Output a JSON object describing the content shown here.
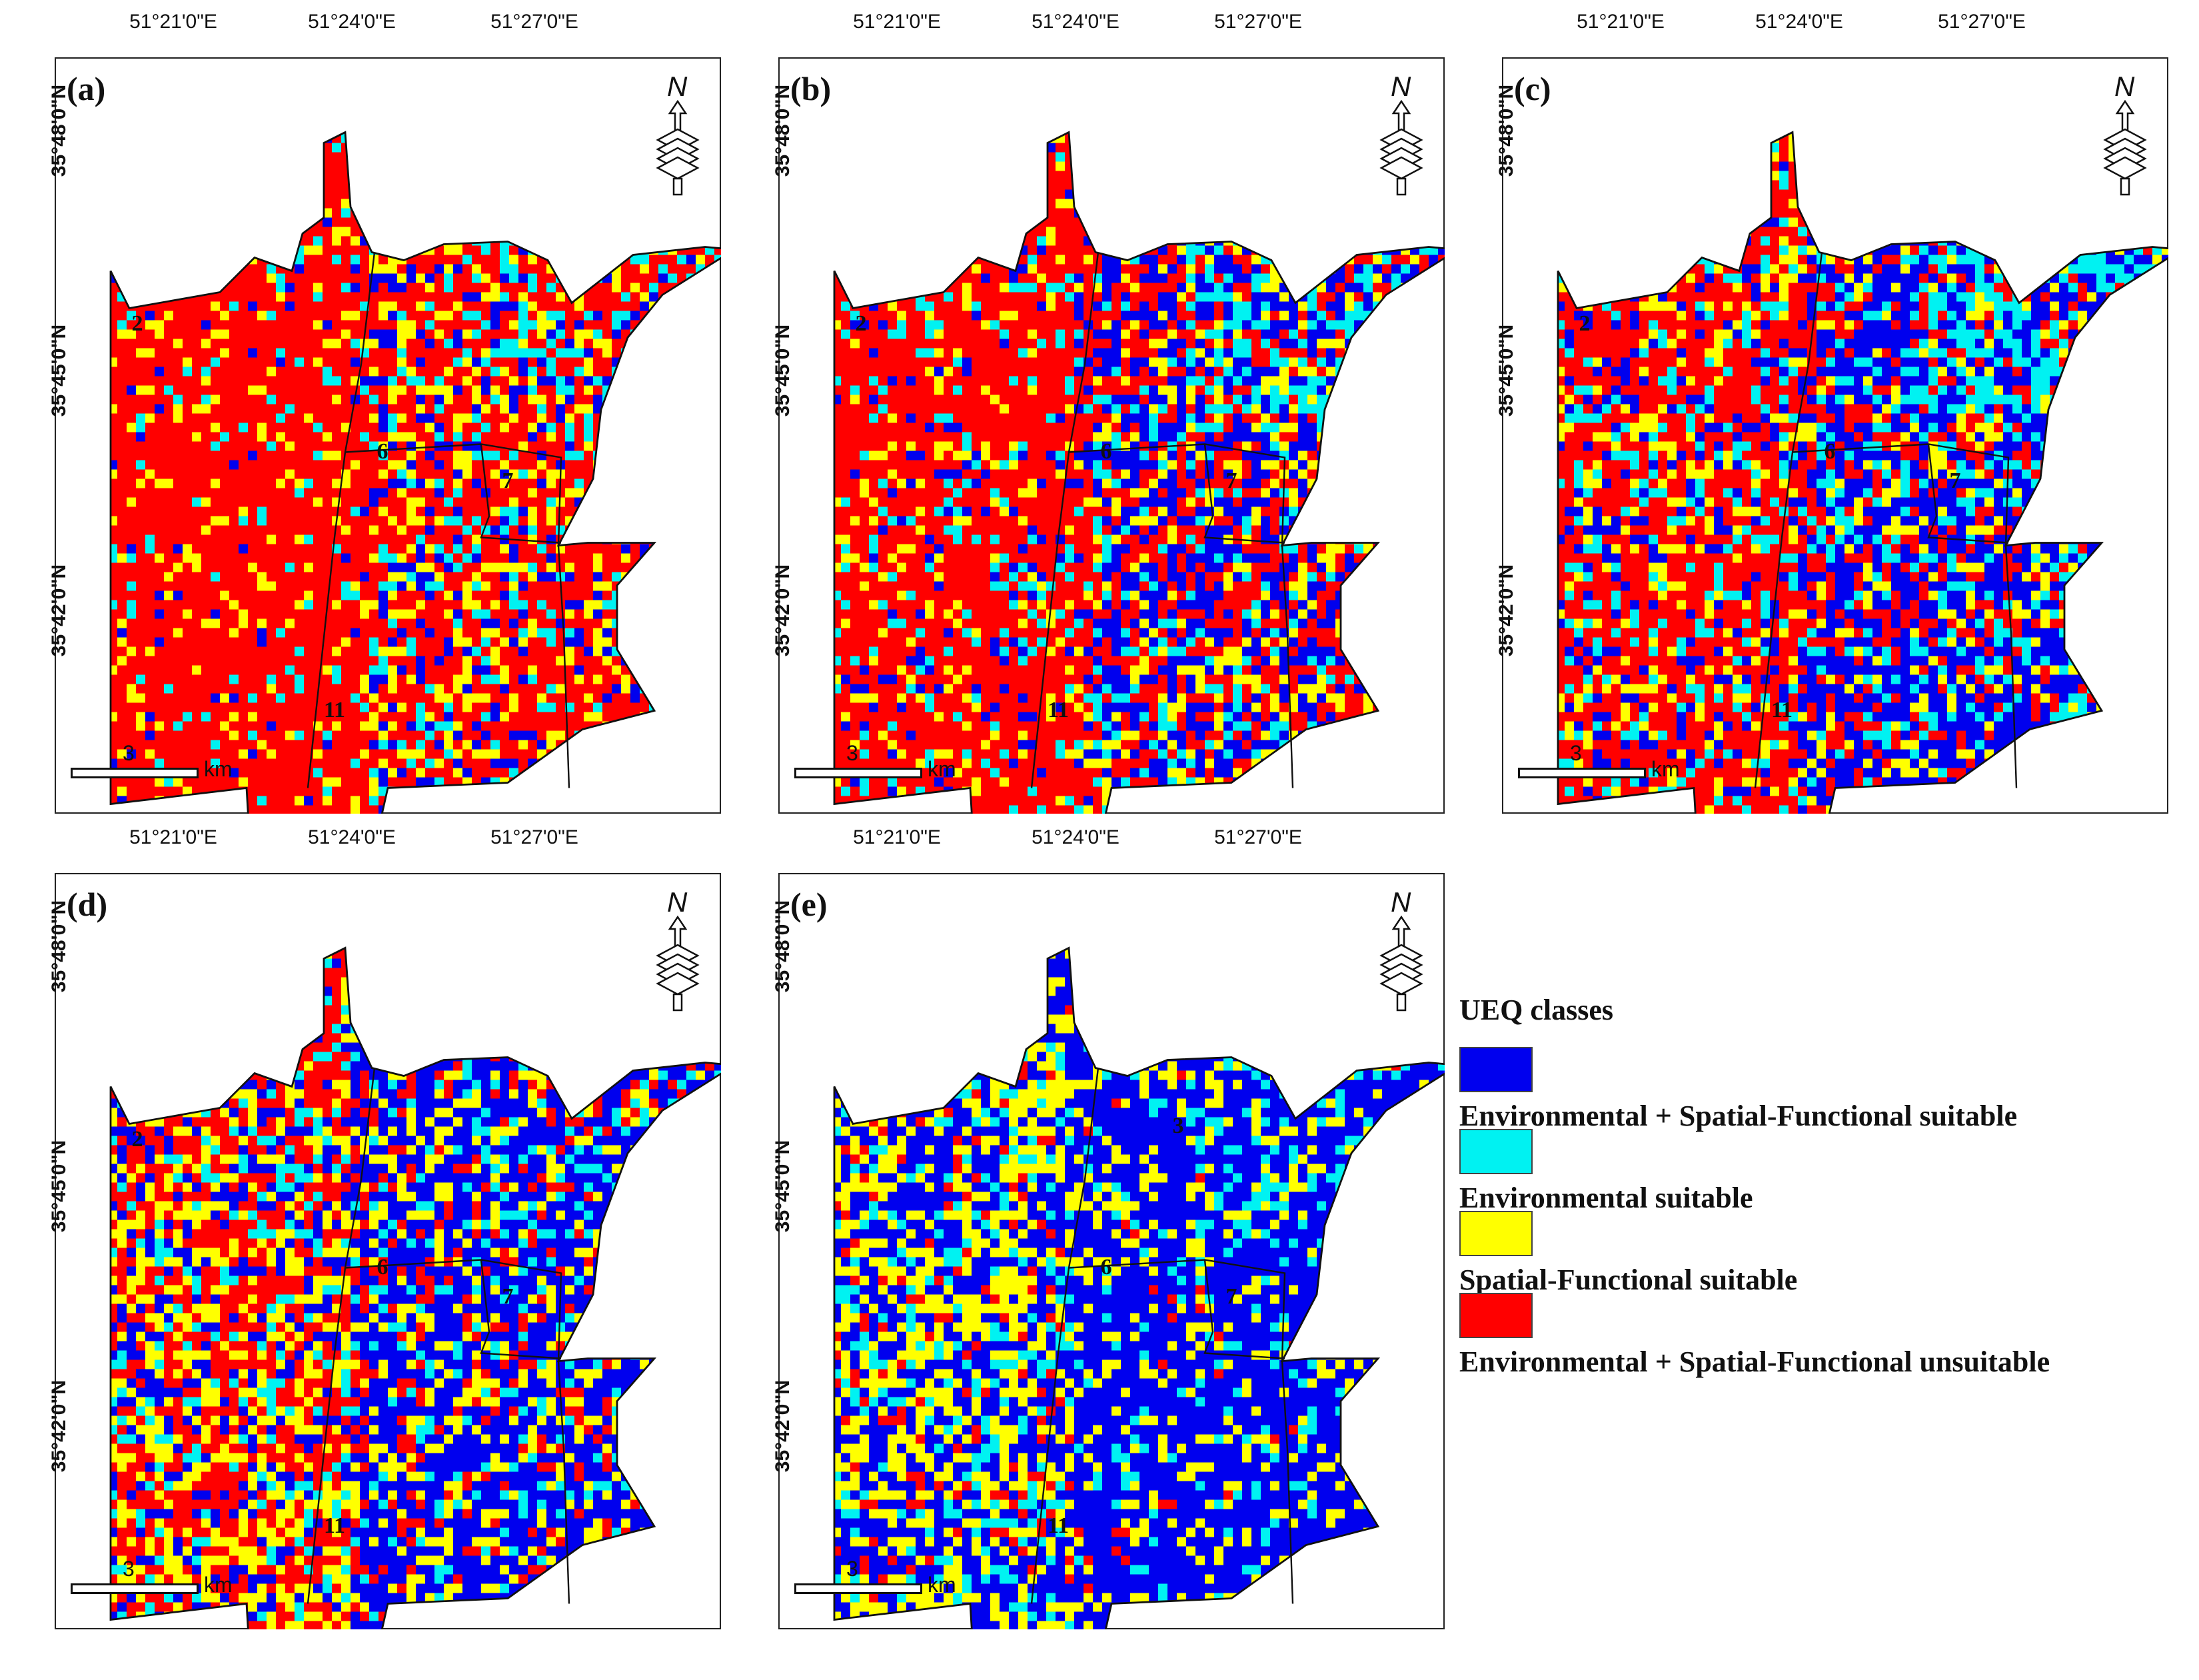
{
  "figure": {
    "lon_labels": [
      "51°21'0\"E",
      "51°24'0\"E",
      "51°27'0\"E"
    ],
    "lat_labels": [
      "35°48'0\"N",
      "35°45'0\"N",
      "35°42'0\"N"
    ],
    "scale_value": "3",
    "scale_unit": "km",
    "north_label": "N",
    "panels": [
      {
        "label": "(a)",
        "districts": [
          "2",
          "6",
          "7",
          "11"
        ]
      },
      {
        "label": "(b)",
        "districts": [
          "2",
          "6",
          "7",
          "11"
        ]
      },
      {
        "label": "(c)",
        "districts": [
          "2",
          "6",
          "7",
          "11"
        ]
      },
      {
        "label": "(d)",
        "districts": [
          "2",
          "6",
          "7",
          "11"
        ]
      },
      {
        "label": "(e)",
        "districts": [
          "3",
          "6",
          "7",
          "11"
        ]
      }
    ]
  },
  "legend": {
    "title": "UEQ classes",
    "items": [
      {
        "label": "Environmental + Spatial-Functional suitable",
        "color": "#0000ee"
      },
      {
        "label": "Environmental suitable",
        "color": "#00f2f2"
      },
      {
        "label": "Spatial-Functional suitable",
        "color": "#ffff00"
      },
      {
        "label": "Environmental + Spatial-Functional unsuitable",
        "color": "#ff0000"
      }
    ]
  },
  "colors": {
    "blue": "#0000ee",
    "cyan": "#00f2f2",
    "yellow": "#ffff00",
    "red": "#ff0000"
  }
}
